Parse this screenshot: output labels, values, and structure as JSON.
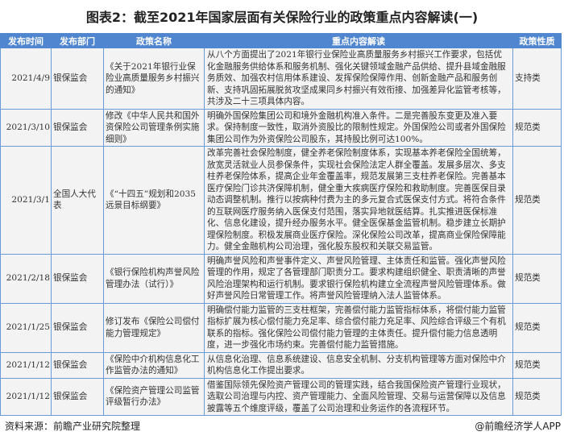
{
  "title": "图表2：截至2021年国家层面有关保险行业的政策重点内容解读(一)",
  "table": {
    "headers": [
      "发布时间",
      "发布部门",
      "政策名称",
      "重点内容解读",
      "政策性质"
    ],
    "rows": [
      {
        "date": "2021/4/9",
        "dept": "银保监会",
        "name": "《关于2021年银行业保险业高质量服务乡村振兴的通知》",
        "content": "从八个方面提出了2021年银行业保险业高质量服务乡村振兴工作要求，包括优化金融服务供给体系和服务机制、强化关键领域金融产品供给、提升县域金融服务质效、加强农村信用体系建设、发挥保险保障作用、创新金融产品和服务创新、支持巩固拓展脱贫攻坚成果同乡村振兴有效衔接、加强差异化监管考核等，共涉及二十三项具体内容。",
        "type": "支持类"
      },
      {
        "date": "2021/3/10",
        "dept": "银保监会",
        "name": "修改《中华人民共和国外资保险公司管理条例实施细则》",
        "content": "明确外国保险集团公司和境外金融机构准入条件。二是完善股东变更及准入要求。保持制度一致性，取消外资股比的限制性规定。外国保险公司或者外国保险集团公司作为外资保险公司股东，其持股比例可达100%。",
        "type": "规范类"
      },
      {
        "date": "2021/3/1",
        "dept": "全国人大代表",
        "name": "《“十四五”规划和2035远景目标纲要》",
        "content": "改革完善社会保险制度，健全养老保险制度体系，实现基本养老保险全国统筹，放宽灵活就业人员参保条件，实现社会保险法定人群全覆盖。发展多层次、多支柱养老保险体系，提高企业年金覆盖率，规范发展第三支柱养老保险。完善基本医疗保险门诊共济保障机制，健全重大疾病医疗保险和救助制度。完善医保目录动态调整机制。推行以按病种付费为主的多元复合式医保支付方式。将符合条件的互联网医疗服务纳入医保支付范围，落实异地就医结算。扎实推进医保标准化、信息化建设，提升经办服务水平。健全医保基金监管机制。稳步建立长期护理保险制度。积极发展商业医疗保险。深化保险公司改革，提高商业保险保障能力。健全金融机构公司治理，强化股东股权和关联交易监管。",
        "type": "规范类"
      },
      {
        "date": "2021/2/18",
        "dept": "银保监会",
        "name": "《银行保险机构声誉风险管理办法（试行）》",
        "content": "明确声誉风险和声誉事件定义、声誉风险管理、主体责任和监管。强化声誉风险管理的作用，规定了各管理部门职责分工。要求构建组织健全、职责清晰的声誉风险治理架构和运行机制。要求银行保险机构建立全流程声誉风险管理体系。做好声誉风险日常管理工作。将声誉风险管理纳入法人监管体系。",
        "type": "规范类"
      },
      {
        "date": "2021/1/25",
        "dept": "银保监会",
        "name": "修订发布《保险公司偿付能力管理规定》",
        "content": "明确偿付能力监管的三支柱框架，完善偿付能力监管指标体系，将偿付能力监管指标扩展为核心偿付能力充足率、综合偿付能力充足率、风险综合评级三个有机联系的指标。强化保险公司偿付能力管理的主体责任。提升偿付能力信息透明度，进一步强化市场约束。完善偿付能力监管措施。",
        "type": "规范类"
      },
      {
        "date": "2021/1/12",
        "dept": "银保监会",
        "name": "《保险中介机构信息化工作监管办法的通知》",
        "content": "从信息化治理、信息系统建设、信息安全机制、分支机构管理等方面对保险中介机构信息化工作提出要求。",
        "type": "规范类"
      },
      {
        "date": "2021/1/12",
        "dept": "银保监会",
        "name": "《保险资产管理公司监管评级暂行办法》",
        "content": "借鉴国际领先保险资产管理公司的管理实践，结合我国保险资产管理行业现状，选取公司治理与内控、资产管理能力、全面风险管理、交易与运营保障以及信息披露等五个维度评级，覆盖了公司治理和业务运作的各流程环节。",
        "type": "规范类"
      }
    ]
  },
  "footer": {
    "source": "资料来源：前瞻产业研究院整理",
    "brand": "@前瞻经济学人APP"
  },
  "colors": {
    "header_bg": "#4f86cf",
    "border": "#6a9ad8",
    "cell_bg": "#f3f3f3"
  }
}
